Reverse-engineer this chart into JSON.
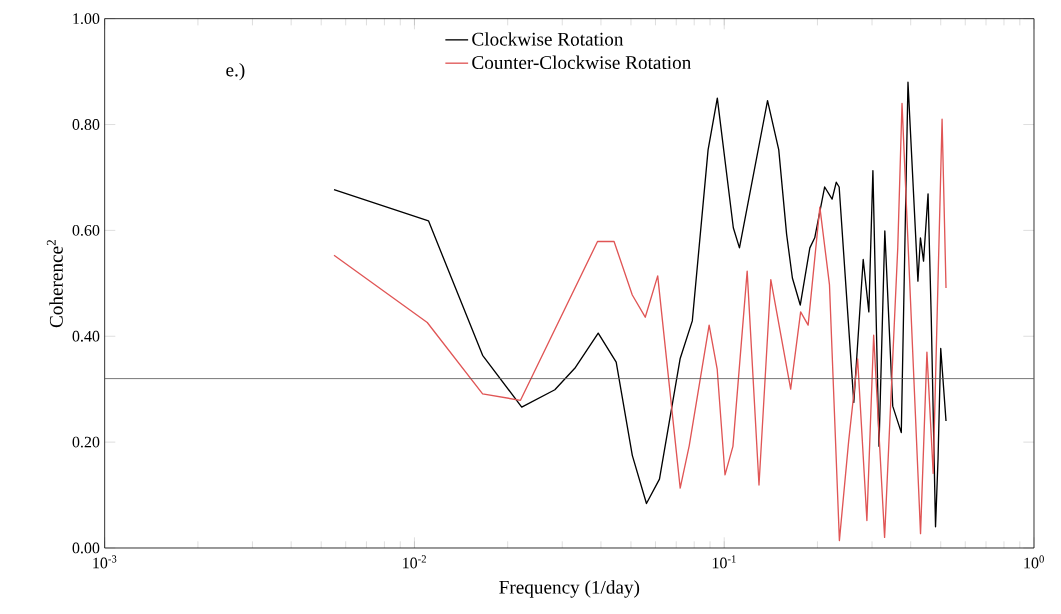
{
  "chart_data": {
    "type": "line",
    "xlabel": "Frequency (1/day)",
    "ylabel": "Coherence$^{2}$",
    "annotations": [
      "e.)"
    ],
    "log": "x",
    "xlim": [
      0.001,
      1
    ],
    "ylim": [
      0,
      1
    ],
    "xticks": [
      {
        "value": 0.001,
        "label": "10$^{-3}$"
      },
      {
        "value": 0.01,
        "label": "10$^{-2}$"
      },
      {
        "value": 0.1,
        "label": "10$^{-1}$"
      },
      {
        "value": 1,
        "label": "10$^{0}$"
      }
    ],
    "yticks": [
      {
        "value": 0,
        "label": "0.00"
      },
      {
        "value": 0.2,
        "label": "0.20"
      },
      {
        "value": 0.4,
        "label": "0.40"
      },
      {
        "value": 0.6,
        "label": "0.60"
      },
      {
        "value": 0.8,
        "label": "0.80"
      },
      {
        "value": 1,
        "label": "1.00"
      }
    ],
    "legend": "top",
    "line_style": "solid",
    "ref_lines": [
      {
        "axis": "y",
        "value": 0.32,
        "color": "#555555"
      }
    ],
    "series": [
      {
        "name": "Clockwise Rotation",
        "color": "#000000",
        "x": [
          0.0055,
          0.0111,
          0.0166,
          0.0222,
          0.0284,
          0.0331,
          0.0392,
          0.0448,
          0.0505,
          0.0561,
          0.0618,
          0.0721,
          0.0789,
          0.0887,
          0.095,
          0.107,
          0.112,
          0.138,
          0.15,
          0.159,
          0.166,
          0.176,
          0.189,
          0.196,
          0.211,
          0.223,
          0.23,
          0.235,
          0.262,
          0.281,
          0.293,
          0.302,
          0.316,
          0.33,
          0.35,
          0.373,
          0.392,
          0.422,
          0.43,
          0.44,
          0.455,
          0.466,
          0.481,
          0.49,
          0.5,
          0.52
        ],
        "values": [
          0.677,
          0.618,
          0.364,
          0.266,
          0.299,
          0.341,
          0.406,
          0.351,
          0.175,
          0.084,
          0.13,
          0.358,
          0.429,
          0.752,
          0.85,
          0.605,
          0.567,
          0.845,
          0.752,
          0.593,
          0.51,
          0.459,
          0.567,
          0.586,
          0.682,
          0.659,
          0.691,
          0.682,
          0.275,
          0.545,
          0.446,
          0.713,
          0.192,
          0.599,
          0.268,
          0.218,
          0.88,
          0.504,
          0.586,
          0.542,
          0.669,
          0.434,
          0.04,
          0.167,
          0.377,
          0.24
        ]
      },
      {
        "name": "Counter-Clockwise Rotation",
        "color": "#e05555",
        "x": [
          0.0055,
          0.011,
          0.0166,
          0.022,
          0.039,
          0.0441,
          0.0505,
          0.0556,
          0.061,
          0.0721,
          0.0771,
          0.0894,
          0.0949,
          0.1006,
          0.1067,
          0.1186,
          0.1295,
          0.1414,
          0.1639,
          0.1765,
          0.1866,
          0.2036,
          0.2187,
          0.2354,
          0.2522,
          0.2696,
          0.2888,
          0.3037,
          0.3294,
          0.3633,
          0.375,
          0.4303,
          0.4512,
          0.4727,
          0.505,
          0.52
        ],
        "values": [
          0.553,
          0.426,
          0.291,
          0.279,
          0.579,
          0.579,
          0.478,
          0.436,
          0.514,
          0.113,
          0.193,
          0.421,
          0.338,
          0.138,
          0.192,
          0.523,
          0.119,
          0.507,
          0.3,
          0.446,
          0.421,
          0.644,
          0.497,
          0.014,
          0.202,
          0.357,
          0.052,
          0.402,
          0.02,
          0.567,
          0.84,
          0.027,
          0.37,
          0.141,
          0.81,
          0.491
        ]
      }
    ]
  }
}
